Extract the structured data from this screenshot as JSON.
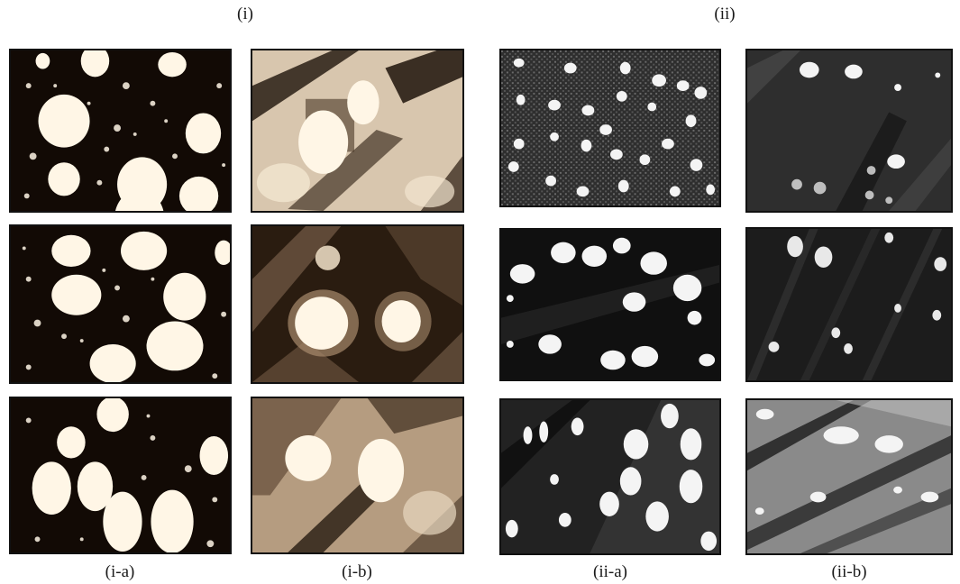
{
  "figure": {
    "group_labels": {
      "i": "(i)",
      "ii": "(ii)"
    },
    "column_labels": {
      "i_a": "(i-a)",
      "i_b": "(i-b)",
      "ii_a": "(ii-a)",
      "ii_b": "(ii-b)"
    }
  },
  "colors": {
    "warm_dark": "#120a05",
    "warm_light": "#fff6e6",
    "warm_mid": "#8a7058",
    "gray_dark": "#0d0d0d",
    "gray_light": "#f4f4f4",
    "gray_mid": "#5c5c5c"
  }
}
